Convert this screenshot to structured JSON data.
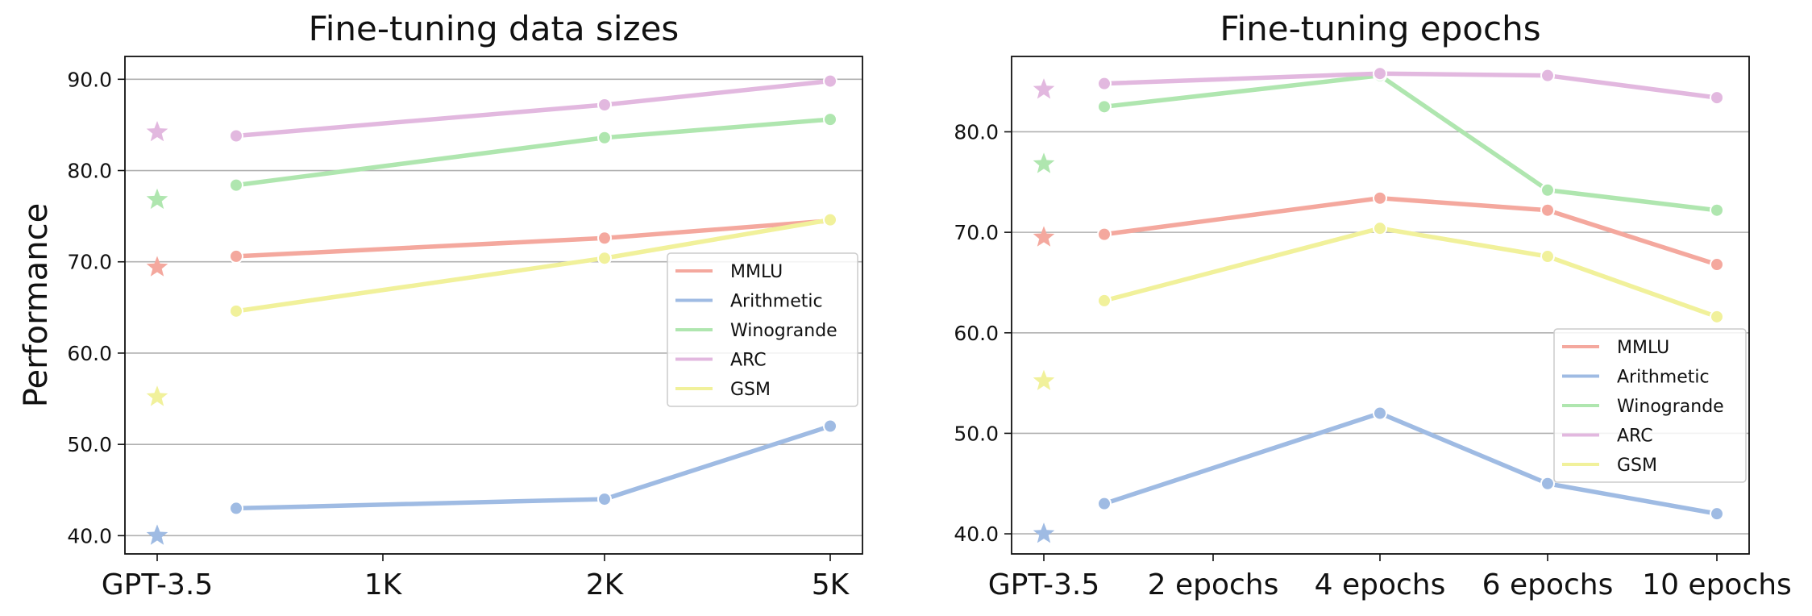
{
  "charts": [
    {
      "type": "line",
      "title": "Fine-tuning data sizes",
      "ylabel": "Performance",
      "ylim": [
        38,
        92.5
      ],
      "yticks": [
        "40.0",
        "50.0",
        "60.0",
        "70.0",
        "80.0",
        "90.0"
      ],
      "baseline_label": "GPT-3.5",
      "categories": [
        "1K",
        "2K",
        "5K"
      ],
      "grid": "horizontal",
      "legend_position": "right",
      "series": [
        {
          "name": "MMLU",
          "color": "#f4a89e",
          "baseline": 69.4,
          "values": [
            70.6,
            72.6,
            74.5
          ]
        },
        {
          "name": "Arithmetic",
          "color": "#9fbbe3",
          "baseline": 40.0,
          "values": [
            43.0,
            44.0,
            52.0
          ]
        },
        {
          "name": "Winogrande",
          "color": "#afe6af",
          "baseline": 76.8,
          "values": [
            78.4,
            83.6,
            85.6
          ]
        },
        {
          "name": "ARC",
          "color": "#e2b8df",
          "baseline": 84.2,
          "values": [
            83.8,
            87.2,
            89.8
          ]
        },
        {
          "name": "GSM",
          "color": "#f1f19b",
          "baseline": 55.2,
          "values": [
            64.6,
            70.4,
            74.6
          ]
        }
      ]
    },
    {
      "type": "line",
      "title": "Fine-tuning epochs",
      "ylabel": "",
      "ylim": [
        38,
        87.5
      ],
      "yticks": [
        "40.0",
        "50.0",
        "60.0",
        "70.0",
        "80.0"
      ],
      "baseline_label": "GPT-3.5",
      "categories": [
        "2 epochs",
        "4 epochs",
        "6 epochs",
        "10 epochs"
      ],
      "grid": "horizontal",
      "legend_position": "lower right",
      "series": [
        {
          "name": "MMLU",
          "color": "#f4a89e",
          "baseline": 69.5,
          "values": [
            69.8,
            73.4,
            72.2,
            66.8
          ]
        },
        {
          "name": "Arithmetic",
          "color": "#9fbbe3",
          "baseline": 40.0,
          "values": [
            43.0,
            52.0,
            45.0,
            42.0
          ]
        },
        {
          "name": "Winogrande",
          "color": "#afe6af",
          "baseline": 76.8,
          "values": [
            82.5,
            85.6,
            74.2,
            72.2
          ]
        },
        {
          "name": "ARC",
          "color": "#e2b8df",
          "baseline": 84.2,
          "values": [
            84.8,
            85.8,
            85.6,
            83.4
          ]
        },
        {
          "name": "GSM",
          "color": "#f1f19b",
          "baseline": 55.2,
          "values": [
            63.2,
            70.4,
            67.6,
            61.6
          ]
        }
      ]
    }
  ],
  "chart_data": [
    {
      "type": "line",
      "title": "Fine-tuning data sizes",
      "ylabel": "Performance",
      "x": [
        "GPT-3.5",
        "1K",
        "2K",
        "5K"
      ],
      "series": [
        {
          "name": "MMLU",
          "values": [
            69.4,
            70.6,
            72.6,
            74.5
          ]
        },
        {
          "name": "Arithmetic",
          "values": [
            40.0,
            43.0,
            44.0,
            52.0
          ]
        },
        {
          "name": "Winogrande",
          "values": [
            76.8,
            78.4,
            83.6,
            85.6
          ]
        },
        {
          "name": "ARC",
          "values": [
            84.2,
            83.8,
            87.2,
            89.8
          ]
        },
        {
          "name": "GSM",
          "values": [
            55.2,
            64.6,
            70.4,
            74.6
          ]
        }
      ]
    },
    {
      "type": "line",
      "title": "Fine-tuning epochs",
      "x": [
        "GPT-3.5",
        "2 epochs",
        "4 epochs",
        "6 epochs",
        "10 epochs"
      ],
      "series": [
        {
          "name": "MMLU",
          "values": [
            69.5,
            69.8,
            73.4,
            72.2,
            66.8
          ]
        },
        {
          "name": "Arithmetic",
          "values": [
            40.0,
            43.0,
            52.0,
            45.0,
            42.0
          ]
        },
        {
          "name": "Winogrande",
          "values": [
            76.8,
            82.5,
            85.6,
            74.2,
            72.2
          ]
        },
        {
          "name": "ARC",
          "values": [
            84.2,
            84.8,
            85.8,
            85.6,
            83.4
          ]
        },
        {
          "name": "GSM",
          "values": [
            55.2,
            63.2,
            70.4,
            67.6,
            61.6
          ]
        }
      ]
    }
  ]
}
